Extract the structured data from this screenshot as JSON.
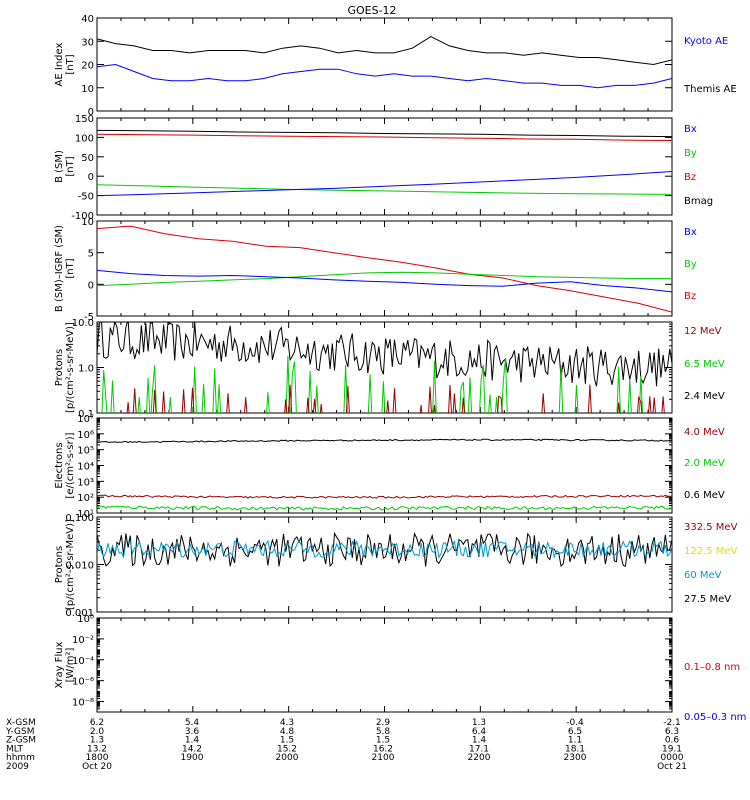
{
  "title": "GOES-12",
  "colors": {
    "black": "#000000",
    "blue": "#0000ff",
    "red": "#dd0000",
    "green": "#00cc00",
    "darkred": "#990000",
    "yellow": "#dddd00",
    "cyan": "#0099cc"
  },
  "chart_data": [
    {
      "type": "line",
      "id": "ae",
      "ylabel": [
        "AE Index",
        "[nT]"
      ],
      "ylim": [
        0,
        40
      ],
      "yticks": [
        0,
        10,
        20,
        30,
        40
      ],
      "scale": "linear",
      "legend": [
        {
          "text": "Kyoto AE",
          "color": "#0000ff"
        },
        {
          "text": "Themis AE",
          "color": "#000000"
        }
      ],
      "series": [
        {
          "name": "Themis AE",
          "color": "#000000",
          "y": [
            31,
            29,
            28,
            26,
            26,
            25,
            26,
            26,
            26,
            25,
            27,
            28,
            27,
            25,
            26,
            25,
            25,
            27,
            32,
            28,
            26,
            25,
            25,
            24,
            25,
            24,
            23,
            23,
            22,
            21,
            20,
            22
          ]
        },
        {
          "name": "Kyoto AE",
          "color": "#0000ff",
          "y": [
            19,
            20,
            17,
            14,
            13,
            13,
            14,
            13,
            13,
            14,
            16,
            17,
            18,
            18,
            16,
            15,
            16,
            15,
            15,
            14,
            13,
            14,
            13,
            12,
            12,
            11,
            11,
            10,
            11,
            11,
            12,
            14
          ]
        }
      ]
    },
    {
      "type": "line",
      "id": "bsm",
      "ylabel": [
        "B (SM)",
        "[nT]"
      ],
      "ylim": [
        -100,
        150
      ],
      "yticks": [
        -100,
        -50,
        0,
        50,
        100,
        150
      ],
      "scale": "linear",
      "legend": [
        {
          "text": "Bx",
          "color": "#0000ff"
        },
        {
          "text": "By",
          "color": "#00cc00"
        },
        {
          "text": "Bz",
          "color": "#dd0000"
        },
        {
          "text": "Bmag",
          "color": "#000000"
        }
      ],
      "series": [
        {
          "name": "Bmag",
          "color": "#000000",
          "y": [
            118,
            117,
            116,
            114,
            113,
            112,
            110,
            109,
            108,
            106,
            105,
            103,
            102
          ]
        },
        {
          "name": "Bz",
          "color": "#dd0000",
          "y": [
            108,
            107,
            106,
            104,
            103,
            102,
            101,
            99,
            98,
            96,
            95,
            93,
            92
          ]
        },
        {
          "name": "By",
          "color": "#00cc00",
          "y": [
            -22,
            -25,
            -28,
            -31,
            -34,
            -36,
            -38,
            -40,
            -42,
            -44,
            -45,
            -46,
            -47
          ]
        },
        {
          "name": "Bx",
          "color": "#0000ff",
          "y": [
            -50,
            -47,
            -43,
            -39,
            -35,
            -31,
            -26,
            -21,
            -15,
            -9,
            -3,
            4,
            12
          ]
        }
      ]
    },
    {
      "type": "line",
      "id": "bdiff",
      "ylabel": [
        "B (SM)–IGRF (SM)",
        "[nT]"
      ],
      "ylim": [
        -5,
        10
      ],
      "yticks": [
        -5,
        0,
        5,
        10
      ],
      "scale": "linear",
      "legend": [
        {
          "text": "Bx",
          "color": "#0000ff"
        },
        {
          "text": "By",
          "color": "#00cc00"
        },
        {
          "text": "Bz",
          "color": "#dd0000"
        }
      ],
      "series": [
        {
          "name": "Bz",
          "color": "#dd0000",
          "y": [
            8.8,
            9.2,
            8.0,
            7.2,
            6.8,
            6.0,
            5.8,
            5.0,
            4.2,
            3.5,
            2.6,
            1.6,
            1.0,
            -0.2,
            -1.0,
            -2.0,
            -3.0,
            -4.4
          ]
        },
        {
          "name": "By",
          "color": "#00cc00",
          "y": [
            -0.2,
            0.0,
            0.3,
            0.5,
            0.7,
            0.9,
            1.2,
            1.5,
            1.8,
            1.9,
            1.8,
            1.6,
            1.4,
            1.2,
            1.1,
            1.0,
            0.9,
            0.9
          ]
        },
        {
          "name": "Bx",
          "color": "#0000ff",
          "y": [
            2.2,
            1.7,
            1.4,
            1.3,
            1.4,
            1.2,
            1.0,
            0.7,
            0.5,
            0.3,
            0.0,
            -0.2,
            -0.3,
            0.2,
            0.4,
            -0.2,
            -0.6,
            -1.2
          ]
        }
      ]
    },
    {
      "type": "line",
      "id": "protons-low",
      "ylabel": [
        "Protons",
        "[p/(cm²-s-sr-MeV)]"
      ],
      "ylim": [
        0.1,
        10
      ],
      "scale": "log",
      "yticklabels": [
        {
          "v": 0.1,
          "t": "0.1"
        },
        {
          "v": 1,
          "t": "1.0"
        },
        {
          "v": 10,
          "t": "10.0"
        }
      ],
      "legend": [
        {
          "text": "12 MeV",
          "color": "#990000"
        },
        {
          "text": "6.5 MeV",
          "color": "#00cc00"
        },
        {
          "text": "2.4 MeV",
          "color": "#000000"
        }
      ],
      "series": [
        {
          "name": "2.4 MeV",
          "color": "#000000",
          "noise": "log",
          "base": [
            5,
            4.5,
            4,
            3.8,
            3.5,
            3,
            2.5,
            2.2,
            2,
            1.8,
            1.6,
            1.4,
            1.3,
            1.2,
            1.2,
            1.1
          ],
          "amp": 0.9
        },
        {
          "name": "6.5 MeV",
          "color": "#00cc00",
          "noise": "spike",
          "base": [
            0.2,
            0.2,
            0.2,
            0.2,
            0.2,
            0.2
          ],
          "amp": 0.5
        },
        {
          "name": "12 MeV",
          "color": "#990000",
          "noise": "spike",
          "base": [
            0.12,
            0.12,
            0.12,
            0.12
          ],
          "amp": 0.3
        }
      ]
    },
    {
      "type": "line",
      "id": "electrons",
      "ylabel": [
        "Electrons",
        "[e/(cm²-s-sr)]"
      ],
      "ylim": [
        10,
        10000000
      ],
      "scale": "log",
      "yticklabels": [
        {
          "v": 10,
          "t": "10¹"
        },
        {
          "v": 100,
          "t": "10²"
        },
        {
          "v": 1000,
          "t": "10³"
        },
        {
          "v": 10000,
          "t": "10⁴"
        },
        {
          "v": 100000,
          "t": "10⁵"
        },
        {
          "v": 1000000,
          "t": "10⁶"
        },
        {
          "v": 10000000,
          "t": "10⁷"
        }
      ],
      "legend": [
        {
          "text": "4.0 MeV",
          "color": "#990000"
        },
        {
          "text": "2.0 MeV",
          "color": "#00cc00"
        },
        {
          "text": "0.6 MeV",
          "color": "#000000"
        }
      ],
      "series": [
        {
          "name": "0.6 MeV",
          "color": "#000000",
          "noise": "log",
          "base": [
            300000,
            320000,
            350000,
            380000,
            400000,
            420000,
            420000,
            400000,
            380000
          ],
          "amp": 0.08
        },
        {
          "name": "4.0 MeV",
          "color": "#990000",
          "noise": "log",
          "base": [
            120,
            110,
            100,
            100,
            100,
            110,
            110,
            120,
            120
          ],
          "amp": 0.12
        },
        {
          "name": "2.0 MeV",
          "color": "#00cc00",
          "noise": "log",
          "base": [
            25,
            22,
            20,
            20,
            20,
            22,
            20,
            22,
            22
          ],
          "amp": 0.2
        }
      ]
    },
    {
      "type": "line",
      "id": "protons-high",
      "ylabel": [
        "Protons",
        "[p/(cm²-s-sr-MeV)]"
      ],
      "ylim": [
        0.001,
        0.1
      ],
      "scale": "log",
      "yticklabels": [
        {
          "v": 0.001,
          "t": "0.001"
        },
        {
          "v": 0.01,
          "t": "0.010"
        },
        {
          "v": 0.1,
          "t": "0.100"
        }
      ],
      "legend": [
        {
          "text": "332.5 MeV",
          "color": "#990000"
        },
        {
          "text": "122.5 MeV",
          "color": "#dddd00"
        },
        {
          "text": "60 MeV",
          "color": "#0099cc"
        },
        {
          "text": "27.5 MeV",
          "color": "#000000"
        }
      ],
      "series": [
        {
          "name": "27.5 MeV",
          "color": "#000000",
          "noise": "log",
          "base": [
            0.022,
            0.022,
            0.022,
            0.022
          ],
          "amp": 0.7
        },
        {
          "name": "60 MeV",
          "color": "#0099cc",
          "noise": "log",
          "base": [
            0.022,
            0.022,
            0.022,
            0.022
          ],
          "amp": 0.35
        }
      ]
    },
    {
      "type": "line",
      "id": "xray",
      "ylabel": [
        "Xray Flux",
        "[W/m²]"
      ],
      "ylim": [
        1e-09,
        1
      ],
      "scale": "log",
      "yticklabels": [
        {
          "v": 1e-08,
          "t": "10⁻⁸"
        },
        {
          "v": 1e-06,
          "t": "10⁻⁶"
        },
        {
          "v": 0.0001,
          "t": "10⁻⁴"
        },
        {
          "v": 0.01,
          "t": "10⁻²"
        },
        {
          "v": 1,
          "t": "10⁰"
        }
      ],
      "legend": [
        {
          "text": "0.1–0.8 nm",
          "color": "#dd0000"
        },
        {
          "text": "0.05–0.3 nm",
          "color": "#0000ff"
        }
      ],
      "series": []
    }
  ],
  "xaxis": {
    "rows": [
      {
        "label": "X-GSM",
        "values": [
          "6.2",
          "5.4",
          "4.3",
          "2.9",
          "1.3",
          "-0.4",
          "-2.1"
        ]
      },
      {
        "label": "Y-GSM",
        "values": [
          "2.0",
          "3.6",
          "4.8",
          "5.8",
          "6.4",
          "6.5",
          "6.3"
        ]
      },
      {
        "label": "Z-GSM",
        "values": [
          "1.3",
          "1.4",
          "1.5",
          "1.5",
          "1.4",
          "1.1",
          "0.6"
        ]
      },
      {
        "label": "MLT",
        "values": [
          "13.2",
          "14.2",
          "15.2",
          "16.2",
          "17.1",
          "18.1",
          "19.1"
        ]
      },
      {
        "label": "hhmm",
        "values": [
          "1800",
          "1900",
          "2000",
          "2100",
          "2200",
          "2300",
          "0000"
        ]
      },
      {
        "label": "2009",
        "values": [
          "Oct 20",
          "",
          "",
          "",
          "",
          "",
          "Oct 21"
        ]
      }
    ]
  }
}
